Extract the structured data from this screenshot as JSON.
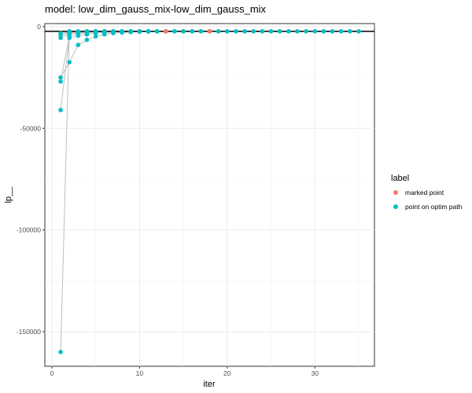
{
  "chart_data": {
    "type": "scatter",
    "title": "model: low_dim_gauss_mix-low_dim_gauss_mix",
    "xlabel": "iter",
    "ylabel": "lp__",
    "xlim": [
      -0.8,
      36.8
    ],
    "ylim": [
      -167000,
      1500
    ],
    "xticks": [
      0,
      10,
      20,
      30
    ],
    "yticks": [
      0,
      -50000,
      -100000,
      -150000
    ],
    "ytick_labels": [
      "0",
      "-50000",
      "-100000",
      "-150000"
    ],
    "grid": true,
    "reference_line_y": -2300,
    "legend": {
      "title": "label",
      "position": "right",
      "entries": [
        {
          "label": "marked point",
          "color": "#F8766D"
        },
        {
          "label": "point on optim path",
          "color": "#00BFC4"
        }
      ]
    },
    "colors": {
      "marked": "#F8766D",
      "path": "#00BFC4",
      "path_line": "#BEBEBE",
      "reference_line": "#000000"
    },
    "paths": [
      {
        "name": "",
        "points": [
          [
            1,
            -160000
          ],
          [
            2,
            -2300
          ],
          [
            3,
            -2300
          ],
          [
            4,
            -2300
          ],
          [
            5,
            -2300
          ],
          [
            6,
            -2300
          ],
          [
            7,
            -2300
          ],
          [
            8,
            -2300
          ],
          [
            9,
            -2300
          ],
          [
            10,
            -2300
          ],
          [
            11,
            -2300
          ],
          [
            12,
            -2300
          ],
          [
            13,
            -2300
          ],
          [
            14,
            -2300
          ],
          [
            15,
            -2300
          ],
          [
            16,
            -2300
          ],
          [
            17,
            -2300
          ],
          [
            18,
            -2300
          ],
          [
            19,
            -2300
          ],
          [
            20,
            -2300
          ],
          [
            21,
            -2300
          ],
          [
            22,
            -2300
          ],
          [
            23,
            -2300
          ],
          [
            24,
            -2300
          ],
          [
            25,
            -2300
          ],
          [
            26,
            -2300
          ],
          [
            27,
            -2300
          ],
          [
            28,
            -2300
          ],
          [
            29,
            -2300
          ],
          [
            30,
            -2300
          ],
          [
            31,
            -2300
          ],
          [
            32,
            -2300
          ],
          [
            33,
            -2300
          ],
          [
            34,
            -2300
          ],
          [
            35,
            -2300
          ]
        ]
      },
      {
        "name": "",
        "points": [
          [
            1,
            -25000
          ],
          [
            2,
            -17500
          ],
          [
            3,
            -9000
          ],
          [
            4,
            -6500
          ],
          [
            5,
            -4800
          ],
          [
            6,
            -3800
          ],
          [
            7,
            -3200
          ],
          [
            8,
            -2900
          ],
          [
            9,
            -2700
          ],
          [
            10,
            -2500
          ],
          [
            11,
            -2400
          ],
          [
            12,
            -2350
          ],
          [
            13,
            -2300
          ]
        ]
      },
      {
        "name": "",
        "points": [
          [
            1,
            -41000
          ],
          [
            2,
            -5500
          ],
          [
            3,
            -4500
          ],
          [
            4,
            -3800
          ],
          [
            5,
            -3200
          ],
          [
            6,
            -2900
          ],
          [
            7,
            -2700
          ],
          [
            8,
            -2600
          ],
          [
            9,
            -2500
          ],
          [
            10,
            -2400
          ],
          [
            11,
            -2350
          ],
          [
            12,
            -2300
          ],
          [
            13,
            -2300
          ],
          [
            14,
            -2300
          ],
          [
            15,
            -2300
          ],
          [
            16,
            -2300
          ],
          [
            17,
            -2300
          ],
          [
            18,
            -2300
          ]
        ]
      },
      {
        "name": "",
        "points": [
          [
            1,
            -27000
          ],
          [
            2,
            -4500
          ],
          [
            3,
            -3500
          ],
          [
            4,
            -3000
          ],
          [
            5,
            -2700
          ],
          [
            6,
            -2500
          ],
          [
            7,
            -2400
          ],
          [
            8,
            -2350
          ],
          [
            9,
            -2300
          ],
          [
            10,
            -2300
          ],
          [
            11,
            -2300
          ]
        ]
      },
      {
        "name": "",
        "points": [
          [
            1,
            -5500
          ],
          [
            2,
            -3500
          ],
          [
            3,
            -3000
          ],
          [
            4,
            -2700
          ],
          [
            5,
            -2500
          ],
          [
            6,
            -2400
          ],
          [
            7,
            -2300
          ],
          [
            8,
            -2300
          ],
          [
            9,
            -2300
          ]
        ]
      },
      {
        "name": "",
        "points": [
          [
            1,
            -4000
          ],
          [
            2,
            -3000
          ],
          [
            3,
            -2600
          ],
          [
            4,
            -2400
          ],
          [
            5,
            -2300
          ],
          [
            6,
            -2300
          ],
          [
            7,
            -2300
          ]
        ]
      },
      {
        "name": "",
        "points": [
          [
            1,
            -3200
          ],
          [
            2,
            -2800
          ],
          [
            3,
            -2500
          ],
          [
            4,
            -2350
          ],
          [
            5,
            -2300
          ]
        ]
      }
    ],
    "marked_points": [
      [
        13,
        -2300
      ],
      [
        18,
        -2300
      ]
    ]
  }
}
